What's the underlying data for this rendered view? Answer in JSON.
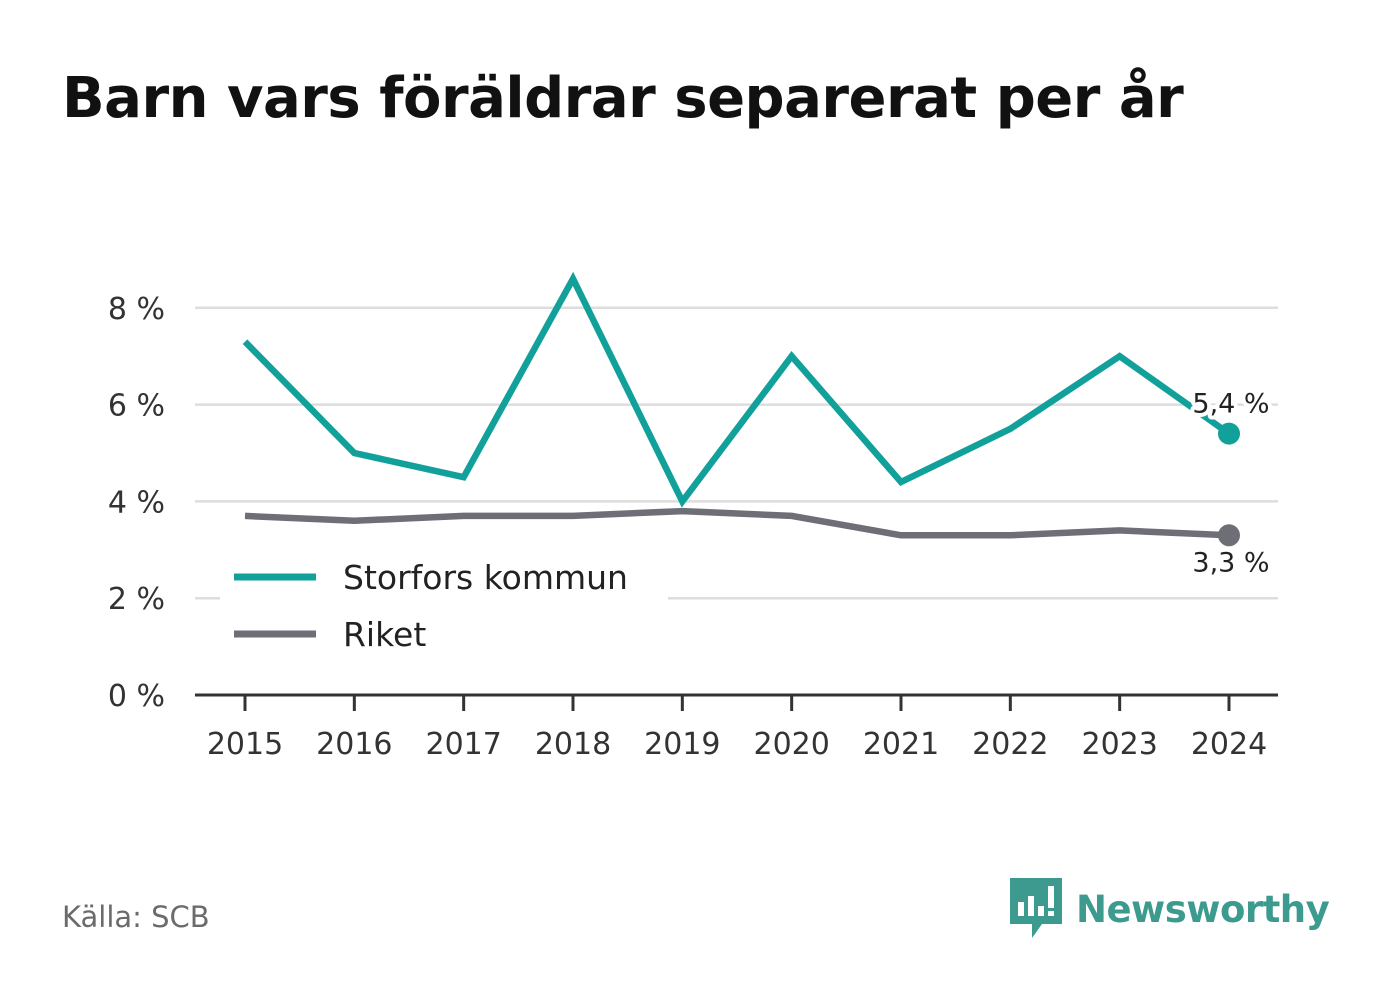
{
  "title": "Barn vars föräldrar separerat per år",
  "source": "Källa: SCB",
  "brand": {
    "name": "Newsworthy",
    "icon": "newsworthy-logo-icon"
  },
  "colors": {
    "storfors": "#11a19a",
    "riket": "#6e6e77",
    "grid": "#dddddd",
    "axis": "#333333",
    "brand": "#3d9a8f"
  },
  "chart_data": {
    "type": "line",
    "title": "Barn vars föräldrar separerat per år",
    "x": [
      "2015",
      "2016",
      "2017",
      "2018",
      "2019",
      "2020",
      "2021",
      "2022",
      "2023",
      "2024"
    ],
    "ylim": [
      0,
      9
    ],
    "yticks": [
      0,
      2,
      4,
      6,
      8
    ],
    "ytick_labels": [
      "0 %",
      "2 %",
      "4 %",
      "6 %",
      "8 %"
    ],
    "grid": true,
    "legend_position": "bottom-left",
    "series": [
      {
        "name": "Storfors kommun",
        "values": [
          7.3,
          5.0,
          4.5,
          8.6,
          4.0,
          7.0,
          4.4,
          5.5,
          7.0,
          5.4
        ],
        "end_label": "5,4 %"
      },
      {
        "name": "Riket",
        "values": [
          3.7,
          3.6,
          3.7,
          3.7,
          3.8,
          3.7,
          3.3,
          3.3,
          3.4,
          3.3
        ],
        "end_label": "3,3 %"
      }
    ]
  }
}
